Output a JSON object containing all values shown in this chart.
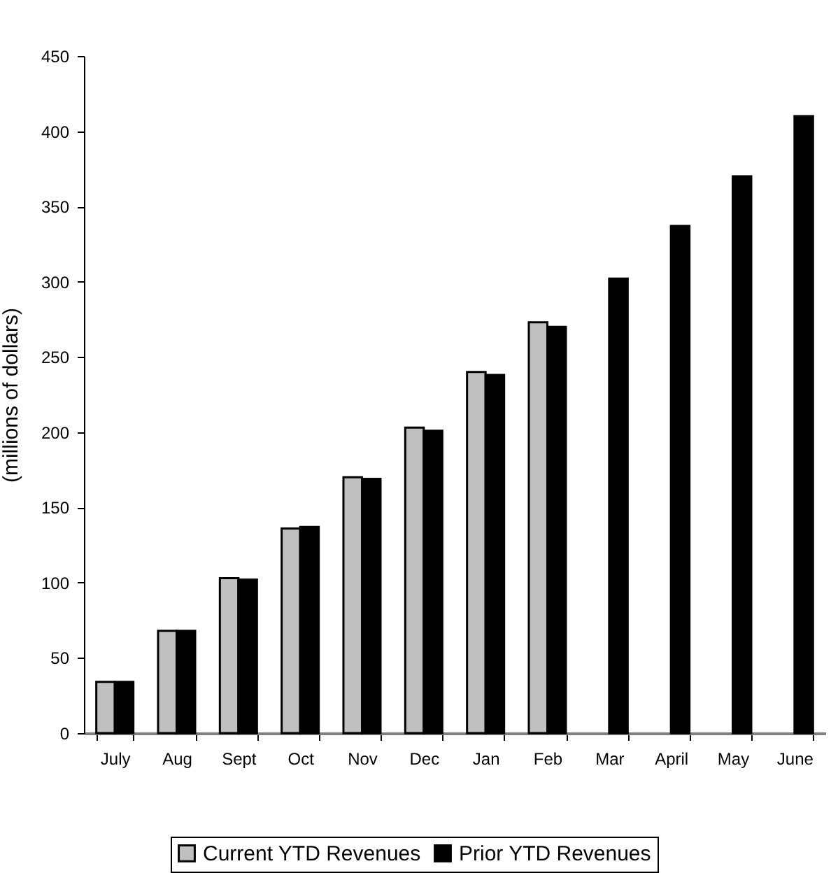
{
  "chart_data": {
    "type": "bar",
    "ylabel": "(millions of dollars)",
    "categories": [
      "July",
      "Aug",
      "Sept",
      "Oct",
      "Nov",
      "Dec",
      "Jan",
      "Feb",
      "Mar",
      "April",
      "May",
      "June"
    ],
    "series": [
      {
        "name": "Current YTD Revenues",
        "color": "#c0c0c0",
        "values": [
          34,
          68,
          103,
          136,
          170,
          203,
          240,
          273,
          null,
          null,
          null,
          null
        ]
      },
      {
        "name": "Prior YTD Revenues",
        "color": "#000000",
        "values": [
          34,
          68,
          102,
          137,
          169,
          201,
          238,
          270,
          302,
          337,
          370,
          410
        ]
      }
    ],
    "ylim": [
      0,
      450
    ],
    "yticks": [
      0,
      50,
      100,
      150,
      200,
      250,
      300,
      350,
      400,
      450
    ],
    "grid": false,
    "legend": "bottom"
  }
}
